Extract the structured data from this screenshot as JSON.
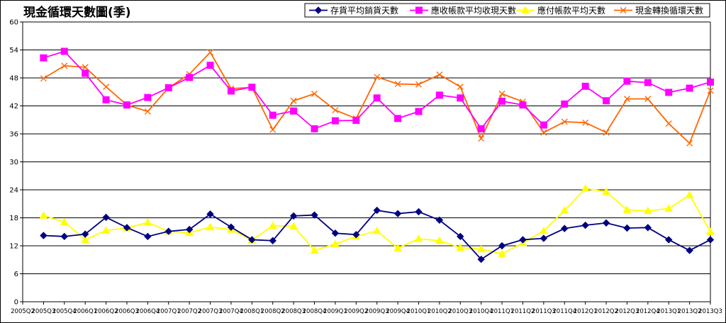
{
  "chart_data": {
    "type": "line",
    "title": "現金循環天數圖(季)",
    "xlabel": "",
    "ylabel": "",
    "ylim": [
      0,
      60
    ],
    "yticks": [
      0,
      6,
      12,
      18,
      24,
      30,
      36,
      42,
      48,
      54,
      60
    ],
    "grid": true,
    "legend_position": "top-right",
    "x": [
      "2005Q2",
      "2005Q3",
      "2005Q4",
      "2006Q1",
      "2006Q2",
      "2006Q3",
      "2006Q4",
      "2007Q1",
      "2007Q2",
      "2007Q3",
      "2007Q4",
      "2008Q1",
      "2008Q2",
      "2008Q3",
      "2008Q4",
      "2009Q1",
      "2009Q2",
      "2009Q3",
      "2009Q4",
      "2010Q1",
      "2010Q2",
      "2010Q3",
      "2010Q4",
      "2011Q1",
      "2011Q2",
      "2011Q3",
      "2011Q4",
      "2012Q1",
      "2012Q2",
      "2012Q3",
      "2012Q4",
      "2013Q1",
      "2013Q2",
      "2013Q3"
    ],
    "series": [
      {
        "name": "存貨平均銷貨天數",
        "color": "#000080",
        "marker": "diamond",
        "values": [
          null,
          14.2,
          14.0,
          14.5,
          18.1,
          15.9,
          14.0,
          15.1,
          15.5,
          18.8,
          16.0,
          13.3,
          13.1,
          18.4,
          18.6,
          14.7,
          14.4,
          19.6,
          18.9,
          19.3,
          17.5,
          14.0,
          9.1,
          12.0,
          13.3,
          13.6,
          15.7,
          16.4,
          16.9,
          15.8,
          15.9,
          13.3,
          11.0,
          13.3
        ]
      },
      {
        "name": "應收帳款平均收現天數",
        "color": "#FF00FF",
        "marker": "square",
        "values": [
          null,
          52.3,
          53.7,
          49.0,
          43.3,
          42.2,
          43.8,
          45.9,
          48.1,
          50.7,
          45.2,
          46.0,
          40.0,
          40.9,
          37.1,
          38.8,
          38.9,
          43.7,
          39.3,
          40.8,
          44.3,
          43.7,
          37.1,
          43.0,
          42.2,
          37.9,
          42.4,
          46.2,
          43.1,
          47.3,
          47.0,
          44.9,
          45.8,
          47.1
        ]
      },
      {
        "name": "應付帳款平均天數",
        "color": "#FFFF00",
        "marker": "triangle",
        "values": [
          null,
          18.5,
          17.1,
          13.3,
          15.3,
          15.8,
          17.0,
          15.1,
          14.8,
          16.0,
          15.5,
          13.2,
          16.3,
          16.2,
          11.0,
          12.4,
          14.0,
          15.2,
          11.5,
          13.5,
          13.1,
          11.6,
          11.3,
          10.3,
          12.6,
          15.2,
          19.6,
          24.3,
          23.6,
          19.7,
          19.5,
          20.0,
          22.9,
          15.0
        ]
      },
      {
        "name": "現金轉換循環天數",
        "color": "#FF6600",
        "marker": "x",
        "values": [
          null,
          47.9,
          50.6,
          50.3,
          46.1,
          42.2,
          40.8,
          45.9,
          48.8,
          53.5,
          45.7,
          46.0,
          36.9,
          43.1,
          44.6,
          41.1,
          39.3,
          48.2,
          46.7,
          46.6,
          48.7,
          46.1,
          35.0,
          44.6,
          42.9,
          36.3,
          38.6,
          38.4,
          36.3,
          43.5,
          43.5,
          38.2,
          34.0,
          45.3
        ]
      }
    ]
  }
}
